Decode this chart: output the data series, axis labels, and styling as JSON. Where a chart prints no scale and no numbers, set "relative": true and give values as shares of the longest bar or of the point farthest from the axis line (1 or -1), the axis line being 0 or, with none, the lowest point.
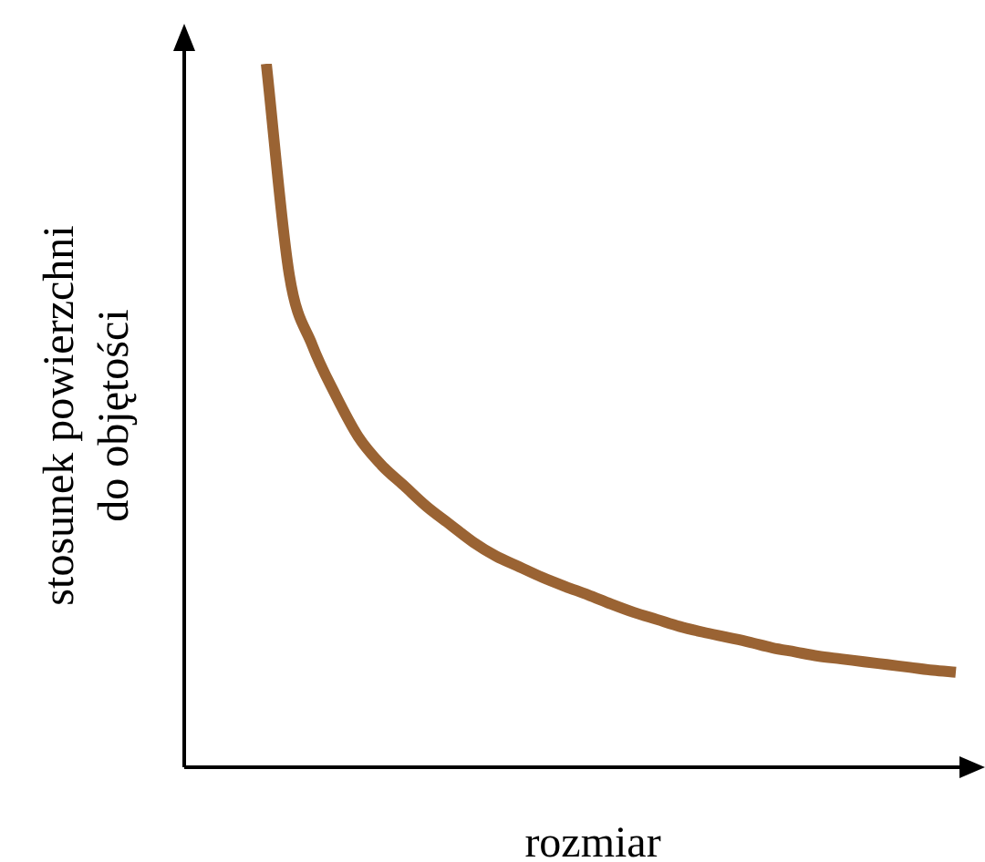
{
  "chart_data": {
    "type": "line",
    "relative": true,
    "xlabel": "rozmiar",
    "ylabel": "stosunek powierzchni do objętości",
    "grid": false,
    "legend": false,
    "marker": "none",
    "line_style": "solid",
    "categories": [
      null,
      null,
      null,
      null,
      null,
      null,
      null,
      null,
      null,
      null,
      null,
      null,
      null,
      null,
      null,
      null,
      null,
      null,
      null,
      null,
      null,
      null,
      null,
      null,
      null,
      null,
      null,
      null,
      null,
      null,
      null
    ],
    "series": [
      {
        "color": "#9a6333",
        "values": [
          1.0,
          0.7,
          0.6,
          0.53,
          0.47,
          0.43,
          0.4,
          0.37,
          0.345,
          0.32,
          0.3,
          0.285,
          0.27,
          0.257,
          0.245,
          0.232,
          0.22,
          0.21,
          0.2,
          0.192,
          0.185,
          0.178,
          0.17,
          0.164,
          0.158,
          0.154,
          0.15,
          0.146,
          0.142,
          0.138,
          0.135
        ]
      }
    ]
  }
}
